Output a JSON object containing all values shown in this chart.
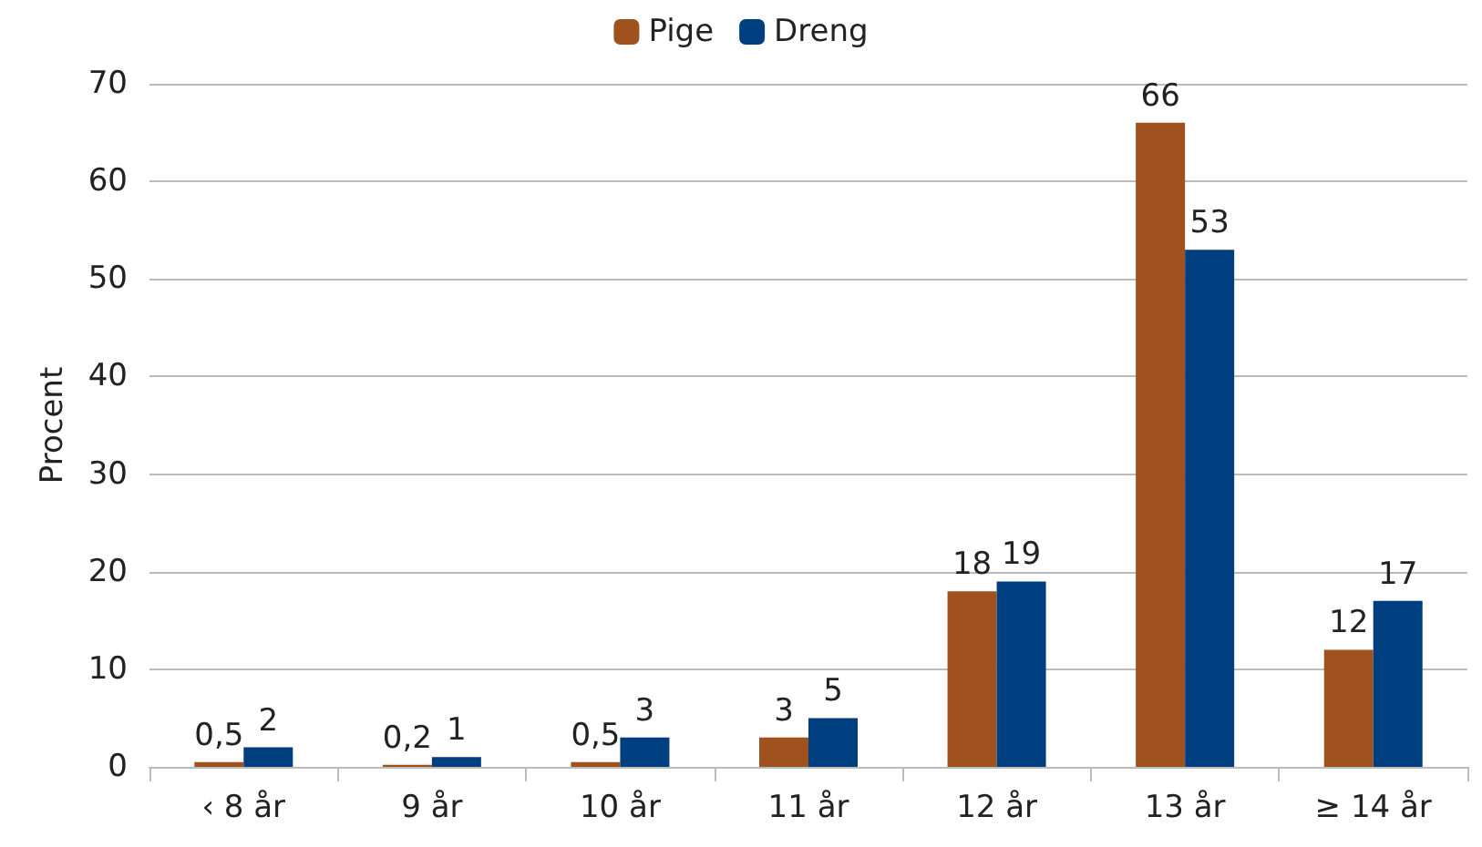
{
  "chart_data": {
    "type": "bar",
    "ylabel": "Procent",
    "categories": [
      "‹ 8 år",
      "9 år",
      "10 år",
      "11 år",
      "12 år",
      "13 år",
      "≥ 14 år"
    ],
    "series": [
      {
        "name": "Pige",
        "color": "#a0521e",
        "values": [
          0.5,
          0.2,
          0.5,
          3,
          18,
          66,
          12
        ],
        "value_labels": [
          "0,5",
          "0,2",
          "0,5",
          "3",
          "18",
          "66",
          "12"
        ]
      },
      {
        "name": "Dreng",
        "color": "#003f7f",
        "values": [
          2,
          1,
          3,
          5,
          19,
          53,
          17
        ],
        "value_labels": [
          "2",
          "1",
          "3",
          "5",
          "19",
          "53",
          "17"
        ]
      }
    ],
    "ylim": [
      0,
      70
    ],
    "yticks": [
      0,
      10,
      20,
      30,
      40,
      50,
      60,
      70
    ],
    "grid": "y",
    "legend": "top"
  }
}
